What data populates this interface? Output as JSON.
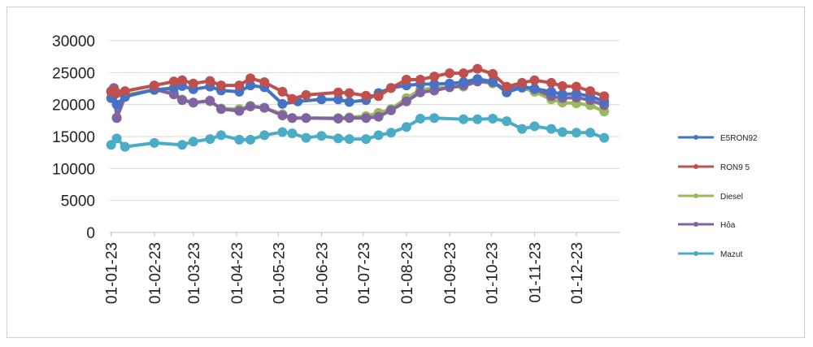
{
  "chart_data": {
    "type": "line",
    "title": "",
    "xlabel": "",
    "ylabel": "",
    "ylim": [
      0,
      30000
    ],
    "y_ticks": [
      "30000",
      "25000",
      "20000",
      "15000",
      "10000",
      "5000",
      "0"
    ],
    "x_ticks": [
      "01-01-23",
      "01-02-23",
      "01-03-23",
      "01-04-23",
      "01-05-23",
      "01-06-23",
      "01-07-23",
      "01-08-23",
      "01-09-23",
      "01-10-23",
      "01-11-23",
      "01-12-23"
    ],
    "x_domain": [
      "2022-12-31",
      "2024-01-01"
    ],
    "grid": "horizontal",
    "legend_position": "right",
    "series": [
      {
        "name": "E5RON92",
        "color": "#4472c4",
        "points": [
          [
            "2023-01-01",
            21000
          ],
          [
            "2023-01-03",
            21500
          ],
          [
            "2023-01-05",
            20000
          ],
          [
            "2023-01-11",
            21300
          ],
          [
            "2023-02-01",
            22300
          ],
          [
            "2023-02-15",
            22600
          ],
          [
            "2023-02-21",
            22900
          ],
          [
            "2023-03-01",
            22400
          ],
          [
            "2023-03-13",
            22800
          ],
          [
            "2023-03-21",
            22200
          ],
          [
            "2023-04-03",
            22000
          ],
          [
            "2023-04-11",
            23000
          ],
          [
            "2023-04-21",
            22700
          ],
          [
            "2023-05-04",
            20100
          ],
          [
            "2023-05-15",
            20500
          ],
          [
            "2023-06-01",
            20800
          ],
          [
            "2023-06-13",
            20800
          ],
          [
            "2023-06-21",
            20400
          ],
          [
            "2023-07-03",
            20700
          ],
          [
            "2023-07-12",
            21800
          ],
          [
            "2023-07-21",
            22600
          ],
          [
            "2023-08-01",
            23000
          ],
          [
            "2023-08-11",
            23200
          ],
          [
            "2023-08-21",
            23200
          ],
          [
            "2023-09-01",
            23300
          ],
          [
            "2023-09-11",
            23500
          ],
          [
            "2023-09-21",
            24000
          ],
          [
            "2023-10-02",
            23600
          ],
          [
            "2023-10-12",
            21900
          ],
          [
            "2023-10-23",
            22700
          ],
          [
            "2023-11-01",
            22500
          ],
          [
            "2023-11-13",
            22000
          ],
          [
            "2023-11-21",
            21600
          ],
          [
            "2023-12-01",
            21700
          ],
          [
            "2023-12-11",
            21300
          ],
          [
            "2023-12-21",
            20500
          ]
        ]
      },
      {
        "name": "RON9 5",
        "color": "#c0504d",
        "points": [
          [
            "2023-01-01",
            22000
          ],
          [
            "2023-01-03",
            22200
          ],
          [
            "2023-01-05",
            21800
          ],
          [
            "2023-01-11",
            22100
          ],
          [
            "2023-02-01",
            23000
          ],
          [
            "2023-02-15",
            23600
          ],
          [
            "2023-02-21",
            23800
          ],
          [
            "2023-03-01",
            23300
          ],
          [
            "2023-03-13",
            23700
          ],
          [
            "2023-03-21",
            23000
          ],
          [
            "2023-04-03",
            23000
          ],
          [
            "2023-04-11",
            24100
          ],
          [
            "2023-04-21",
            23500
          ],
          [
            "2023-05-04",
            22000
          ],
          [
            "2023-05-11",
            20900
          ],
          [
            "2023-05-21",
            21500
          ],
          [
            "2023-06-13",
            21900
          ],
          [
            "2023-06-21",
            21800
          ],
          [
            "2023-07-03",
            21400
          ],
          [
            "2023-07-12",
            21300
          ],
          [
            "2023-07-21",
            22600
          ],
          [
            "2023-08-01",
            23900
          ],
          [
            "2023-08-11",
            23900
          ],
          [
            "2023-08-21",
            24400
          ],
          [
            "2023-09-01",
            24900
          ],
          [
            "2023-09-11",
            24900
          ],
          [
            "2023-09-21",
            25600
          ],
          [
            "2023-10-02",
            24800
          ],
          [
            "2023-10-12",
            22800
          ],
          [
            "2023-10-23",
            23400
          ],
          [
            "2023-11-01",
            23800
          ],
          [
            "2023-11-13",
            23400
          ],
          [
            "2023-11-21",
            22900
          ],
          [
            "2023-12-01",
            22800
          ],
          [
            "2023-12-11",
            22100
          ],
          [
            "2023-12-21",
            21300
          ]
        ]
      },
      {
        "name": "Diesel",
        "color": "#9bbb59",
        "points": [
          [
            "2023-01-01",
            22000
          ],
          [
            "2023-01-03",
            22100
          ],
          [
            "2023-01-05",
            18000
          ],
          [
            "2023-01-11",
            21500
          ],
          [
            "2023-02-01",
            22300
          ],
          [
            "2023-02-15",
            21900
          ],
          [
            "2023-02-21",
            20800
          ],
          [
            "2023-03-01",
            20300
          ],
          [
            "2023-03-13",
            20500
          ],
          [
            "2023-03-21",
            19400
          ],
          [
            "2023-04-03",
            19300
          ],
          [
            "2023-04-11",
            19800
          ],
          [
            "2023-04-21",
            19500
          ],
          [
            "2023-05-04",
            18500
          ],
          [
            "2023-05-11",
            17900
          ],
          [
            "2023-05-21",
            17900
          ],
          [
            "2023-06-13",
            17900
          ],
          [
            "2023-06-21",
            18000
          ],
          [
            "2023-07-03",
            18200
          ],
          [
            "2023-07-12",
            18700
          ],
          [
            "2023-07-21",
            19300
          ],
          [
            "2023-08-01",
            21000
          ],
          [
            "2023-08-11",
            22300
          ],
          [
            "2023-08-21",
            22600
          ],
          [
            "2023-09-01",
            22700
          ],
          [
            "2023-09-11",
            22800
          ],
          [
            "2023-09-21",
            23600
          ],
          [
            "2023-10-02",
            23300
          ],
          [
            "2023-10-12",
            22400
          ],
          [
            "2023-10-23",
            22600
          ],
          [
            "2023-11-01",
            22000
          ],
          [
            "2023-11-13",
            20800
          ],
          [
            "2023-11-21",
            20300
          ],
          [
            "2023-12-01",
            20200
          ],
          [
            "2023-12-11",
            19900
          ],
          [
            "2023-12-21",
            18900
          ]
        ]
      },
      {
        "name": "Hỏa",
        "color": "#8064a2",
        "points": [
          [
            "2023-01-01",
            22100
          ],
          [
            "2023-01-03",
            22600
          ],
          [
            "2023-01-05",
            17900
          ],
          [
            "2023-01-11",
            21200
          ],
          [
            "2023-02-01",
            22400
          ],
          [
            "2023-02-15",
            21600
          ],
          [
            "2023-02-21",
            20700
          ],
          [
            "2023-03-01",
            20300
          ],
          [
            "2023-03-13",
            20600
          ],
          [
            "2023-03-21",
            19300
          ],
          [
            "2023-04-03",
            19000
          ],
          [
            "2023-04-11",
            19700
          ],
          [
            "2023-04-21",
            19500
          ],
          [
            "2023-05-04",
            18300
          ],
          [
            "2023-05-11",
            17900
          ],
          [
            "2023-05-21",
            17900
          ],
          [
            "2023-06-13",
            17800
          ],
          [
            "2023-06-21",
            17900
          ],
          [
            "2023-07-03",
            17900
          ],
          [
            "2023-07-12",
            18100
          ],
          [
            "2023-07-21",
            19100
          ],
          [
            "2023-08-01",
            20500
          ],
          [
            "2023-08-11",
            21900
          ],
          [
            "2023-08-21",
            22200
          ],
          [
            "2023-09-01",
            22700
          ],
          [
            "2023-09-11",
            23000
          ],
          [
            "2023-09-21",
            23600
          ],
          [
            "2023-10-02",
            23500
          ],
          [
            "2023-10-12",
            22300
          ],
          [
            "2023-10-23",
            22900
          ],
          [
            "2023-11-01",
            22400
          ],
          [
            "2023-11-13",
            21300
          ],
          [
            "2023-11-21",
            21000
          ],
          [
            "2023-12-01",
            21100
          ],
          [
            "2023-12-11",
            20700
          ],
          [
            "2023-12-21",
            19900
          ]
        ]
      },
      {
        "name": "Mazut",
        "color": "#4bacc6",
        "points": [
          [
            "2023-01-01",
            13700
          ],
          [
            "2023-01-05",
            14700
          ],
          [
            "2023-01-11",
            13400
          ],
          [
            "2023-02-01",
            14000
          ],
          [
            "2023-02-21",
            13700
          ],
          [
            "2023-03-01",
            14200
          ],
          [
            "2023-03-13",
            14600
          ],
          [
            "2023-03-21",
            15200
          ],
          [
            "2023-04-03",
            14500
          ],
          [
            "2023-04-11",
            14500
          ],
          [
            "2023-04-21",
            15200
          ],
          [
            "2023-05-04",
            15700
          ],
          [
            "2023-05-11",
            15500
          ],
          [
            "2023-05-21",
            14800
          ],
          [
            "2023-06-01",
            15100
          ],
          [
            "2023-06-13",
            14700
          ],
          [
            "2023-06-21",
            14600
          ],
          [
            "2023-07-03",
            14600
          ],
          [
            "2023-07-12",
            15200
          ],
          [
            "2023-07-21",
            15600
          ],
          [
            "2023-08-01",
            16500
          ],
          [
            "2023-08-11",
            17800
          ],
          [
            "2023-08-21",
            17900
          ],
          [
            "2023-09-11",
            17700
          ],
          [
            "2023-09-21",
            17700
          ],
          [
            "2023-10-02",
            17800
          ],
          [
            "2023-10-12",
            17400
          ],
          [
            "2023-10-23",
            16200
          ],
          [
            "2023-11-01",
            16600
          ],
          [
            "2023-11-13",
            16200
          ],
          [
            "2023-11-21",
            15700
          ],
          [
            "2023-12-01",
            15600
          ],
          [
            "2023-12-11",
            15600
          ],
          [
            "2023-12-21",
            14800
          ]
        ]
      }
    ]
  }
}
